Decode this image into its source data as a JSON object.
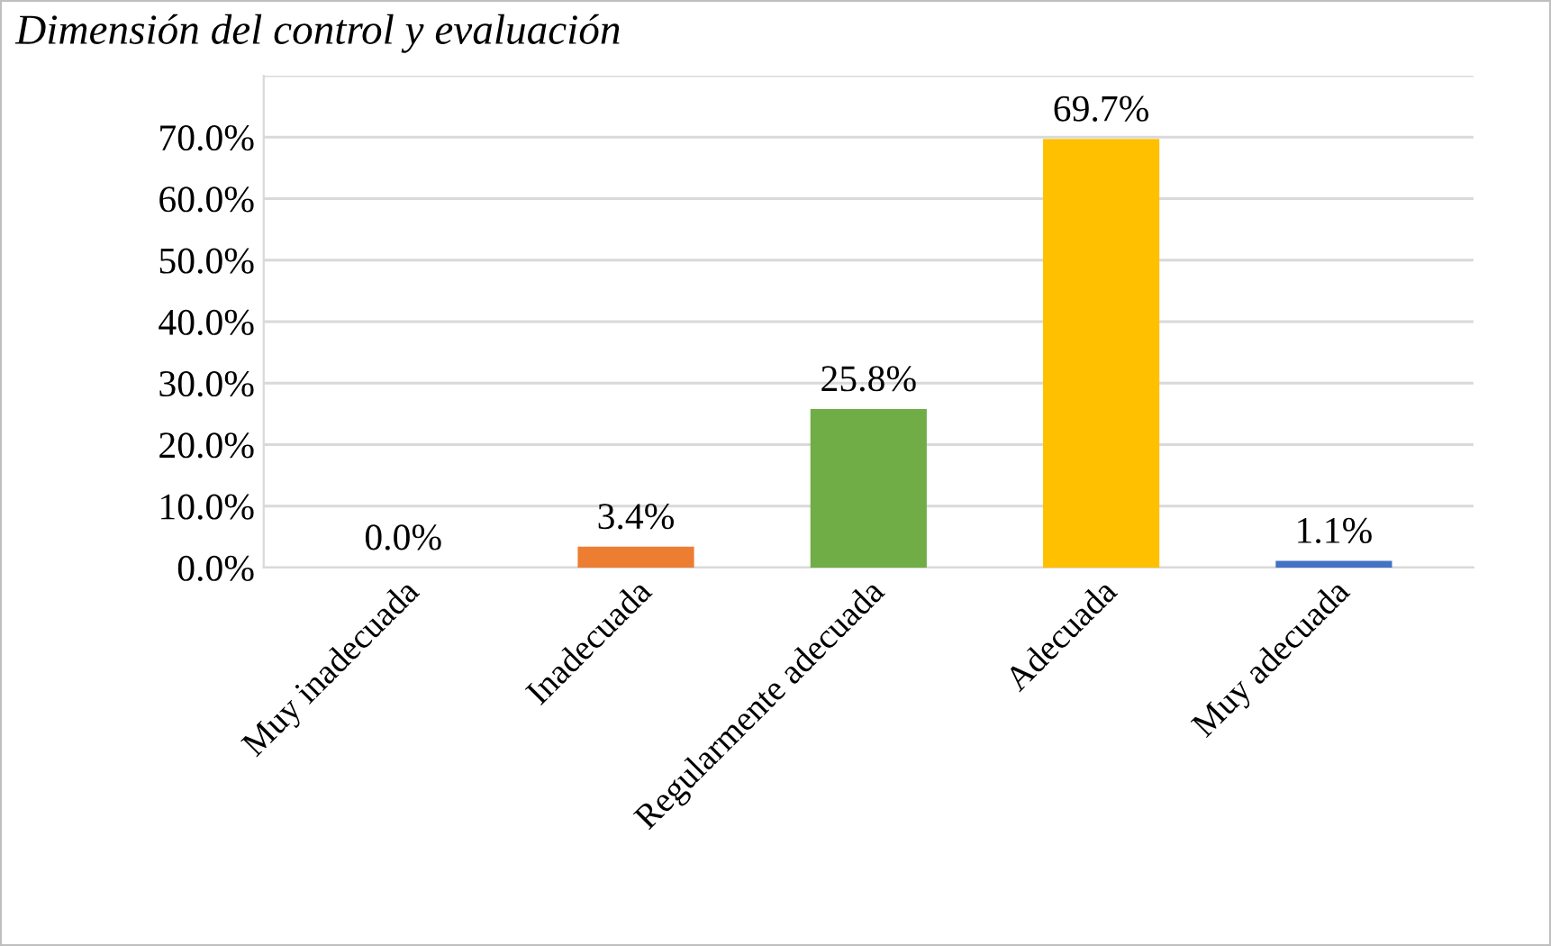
{
  "chart_data": {
    "type": "bar",
    "title": "Dimensión del control y evaluación",
    "categories": [
      "Muy inadecuada",
      "Inadecuada",
      "Regularmente adecuada",
      "Adecuada",
      "Muy adecuada"
    ],
    "values": [
      0.0,
      3.4,
      25.8,
      69.7,
      1.1
    ],
    "colors": [
      "#7030a0",
      "#ed7d31",
      "#70ad47",
      "#ffc000",
      "#4472c4"
    ],
    "value_labels": [
      "0.0%",
      "3.4%",
      "25.8%",
      "69.7%",
      "1.1%"
    ],
    "ylim": [
      0,
      80
    ],
    "yticks": [
      {
        "value": 0,
        "label": "0.0%"
      },
      {
        "value": 10,
        "label": "10.0%"
      },
      {
        "value": 20,
        "label": "20.0%"
      },
      {
        "value": 30,
        "label": "30.0%"
      },
      {
        "value": 40,
        "label": "40.0%"
      },
      {
        "value": 50,
        "label": "50.0%"
      },
      {
        "value": 60,
        "label": "60.0%"
      },
      {
        "value": 70,
        "label": "70.0%"
      },
      {
        "value": 80,
        "label": null
      }
    ],
    "grid": "y",
    "legend": false
  }
}
